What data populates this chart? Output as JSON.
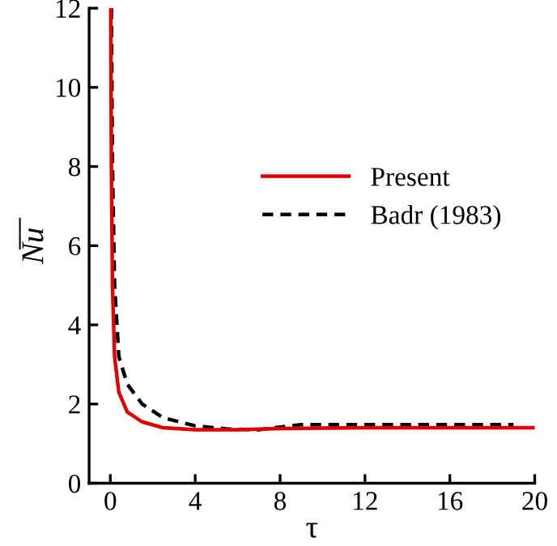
{
  "chart_data": {
    "type": "line",
    "xlabel": "τ",
    "ylabel": "N̅u̅",
    "xlim": [
      -1,
      20
    ],
    "xticks": [
      0,
      4,
      8,
      12,
      16,
      20
    ],
    "ylim": [
      0,
      12
    ],
    "yticks": [
      0,
      2,
      4,
      6,
      8,
      10,
      12
    ],
    "grid": false,
    "legend": "right",
    "marker": "none",
    "series": [
      {
        "name": "Present",
        "color": "#e00000",
        "line_style": "solid",
        "x": [
          0.02,
          0.05,
          0.1,
          0.2,
          0.4,
          0.8,
          1.5,
          2.5,
          4,
          6,
          8,
          12,
          20
        ],
        "values": [
          12,
          8,
          5,
          3.2,
          2.3,
          1.8,
          1.55,
          1.4,
          1.35,
          1.35,
          1.38,
          1.4,
          1.4
        ]
      },
      {
        "name": "Badr (1983)",
        "color": "#000000",
        "line_style": "dashed",
        "x": [
          0.05,
          0.1,
          0.2,
          0.4,
          0.8,
          1.5,
          2.5,
          4,
          5.5,
          7,
          8,
          9,
          19
        ],
        "values": [
          12,
          8,
          5,
          3.2,
          2.5,
          2.0,
          1.65,
          1.45,
          1.37,
          1.35,
          1.42,
          1.48,
          1.48
        ]
      }
    ]
  }
}
